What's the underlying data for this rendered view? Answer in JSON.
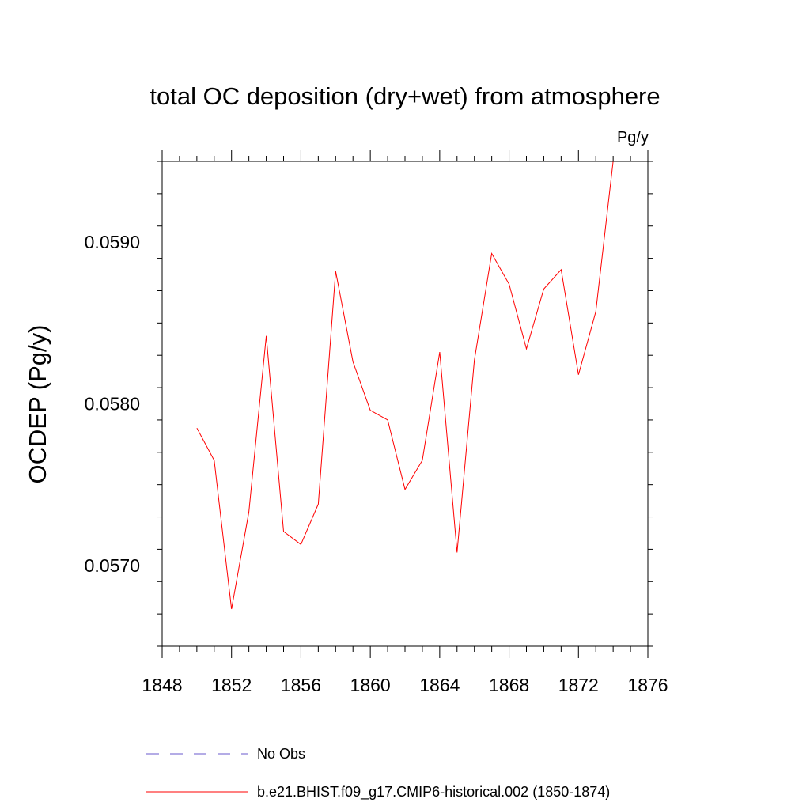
{
  "chart_data": {
    "type": "line",
    "title": "total OC deposition (dry+wet) from atmosphere",
    "units": "Pg/y",
    "xlabel": "",
    "ylabel": "OCDEP  (Pg/y)",
    "xlim": [
      1848,
      1876
    ],
    "ylim": [
      0.0565,
      0.0595
    ],
    "x_ticks": [
      "1848",
      "1852",
      "1856",
      "1860",
      "1864",
      "1868",
      "1872",
      "1876"
    ],
    "y_ticks": [
      "0.0570",
      "0.0580",
      "0.0590"
    ],
    "y_tick_values": [
      0.057,
      0.058,
      0.059
    ],
    "series": [
      {
        "name": "b.e21.BHIST.f09_g17.CMIP6-historical.002 (1850-1874)",
        "color": "#ff0000",
        "style": "solid",
        "x": [
          1850,
          1851,
          1852,
          1853,
          1854,
          1855,
          1856,
          1857,
          1858,
          1859,
          1860,
          1861,
          1862,
          1863,
          1864,
          1865,
          1866,
          1867,
          1868,
          1869,
          1870,
          1871,
          1872,
          1873,
          1874
        ],
        "values": [
          0.05785,
          0.05765,
          0.05673,
          0.05733,
          0.05842,
          0.05721,
          0.05713,
          0.05738,
          0.05882,
          0.05826,
          0.05796,
          0.0579,
          0.05747,
          0.05765,
          0.05832,
          0.05708,
          0.05827,
          0.05893,
          0.05874,
          0.05834,
          0.05871,
          0.05883,
          0.05818,
          0.05857,
          0.0595
        ]
      }
    ],
    "legend": [
      {
        "label": "No Obs",
        "color": "#6a5acd",
        "style": "dashed"
      },
      {
        "label": "b.e21.BHIST.f09_g17.CMIP6-historical.002 (1850-1874)",
        "color": "#ff0000",
        "style": "solid"
      }
    ],
    "legend_position": "bottom"
  }
}
